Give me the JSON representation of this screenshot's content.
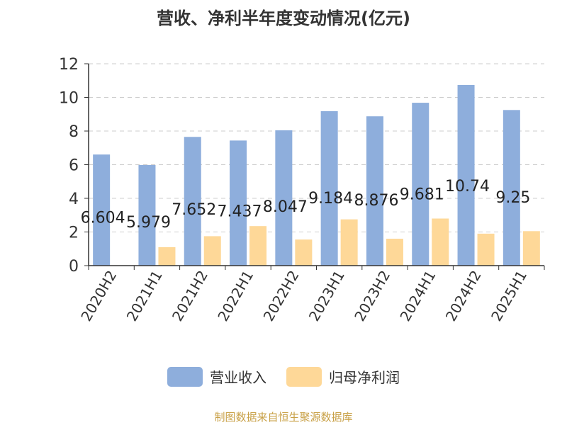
{
  "chart_data": {
    "type": "bar",
    "title": "营收、净利半年度变动情况(亿元)",
    "categories": [
      "2020H2",
      "2021H1",
      "2021H2",
      "2022H1",
      "2022H2",
      "2023H1",
      "2023H2",
      "2024H1",
      "2024H2",
      "2025H1"
    ],
    "series": [
      {
        "name": "营业收入",
        "color": "#8eaedc",
        "values": [
          6.604,
          5.979,
          7.652,
          7.437,
          8.047,
          9.184,
          8.876,
          9.681,
          10.74,
          9.25
        ],
        "labels": [
          "6.604",
          "5.979",
          "7.652",
          "7.437",
          "8.047",
          "9.184",
          "8.876",
          "9.681",
          "10.74",
          "9.25"
        ]
      },
      {
        "name": "归母净利润",
        "color": "#fed898",
        "values": [
          null,
          1.1,
          1.75,
          2.35,
          1.55,
          2.75,
          1.6,
          2.8,
          1.9,
          2.05
        ]
      }
    ],
    "ylim": [
      0,
      12
    ],
    "yticks": [
      0,
      2,
      4,
      6,
      8,
      10,
      12
    ],
    "grid": true,
    "legend_position": "bottom"
  },
  "source_note": "制图数据来自恒生聚源数据库"
}
